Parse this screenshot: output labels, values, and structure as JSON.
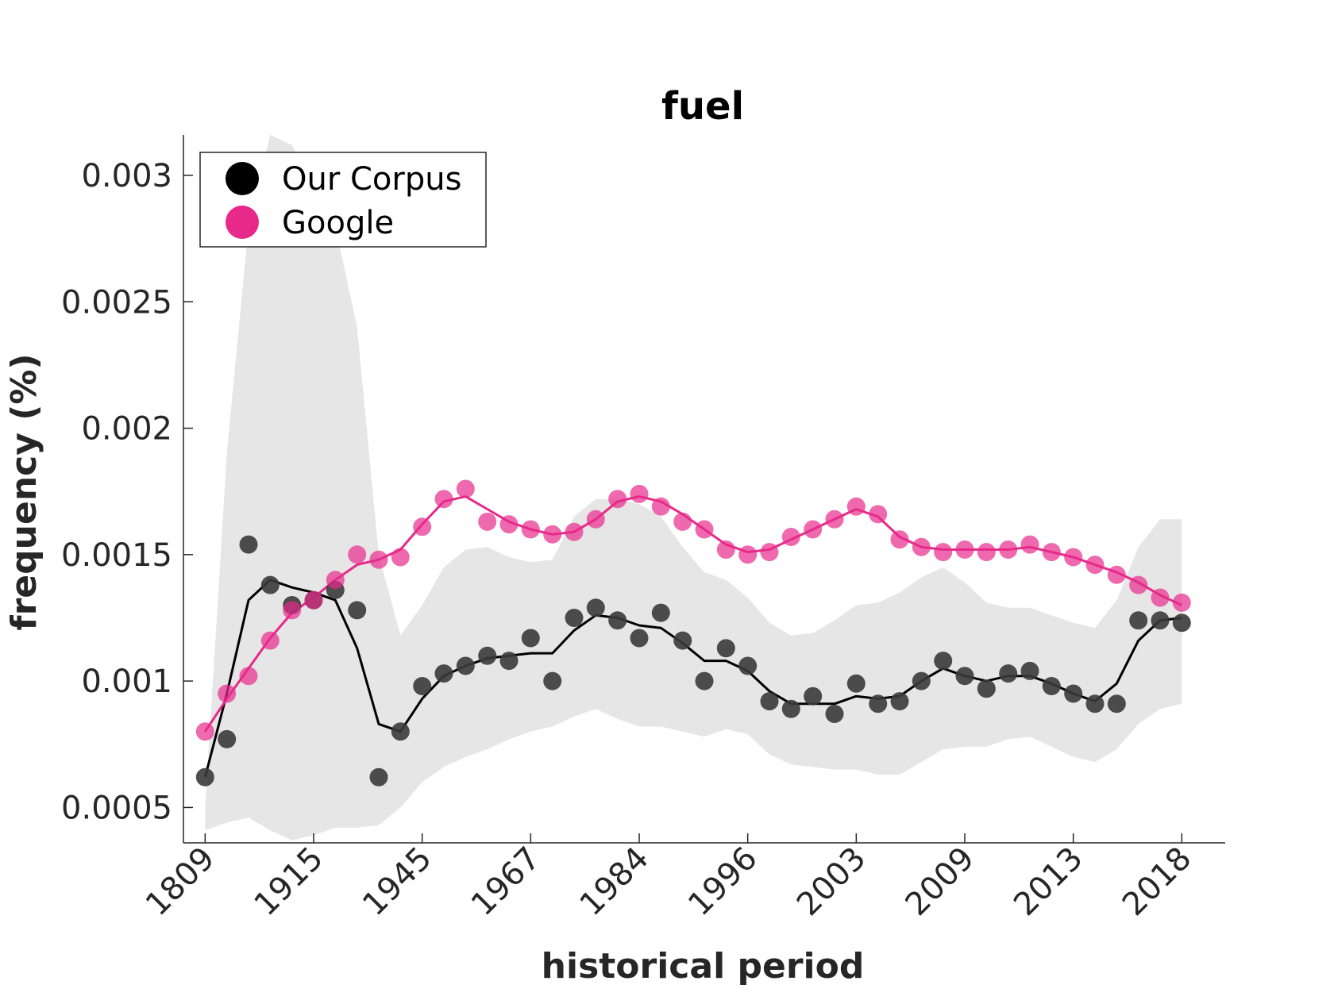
{
  "chart_data": {
    "type": "scatter",
    "title": "fuel",
    "xlabel": "historical period",
    "ylabel": "frequency (%)",
    "x_tick_labels": [
      "1809",
      "1915",
      "1945",
      "1967",
      "1984",
      "1996",
      "2003",
      "2009",
      "2013",
      "2018"
    ],
    "x_tick_positions": [
      1,
      6,
      11,
      16,
      21,
      26,
      31,
      36,
      41,
      46
    ],
    "y_ticks": [
      0.0005,
      0.001,
      0.0015,
      0.002,
      0.0025,
      0.003
    ],
    "y_tick_labels": [
      "0.0005",
      "0.001",
      "0.0015",
      "0.002",
      "0.0025",
      "0.003"
    ],
    "xlim": [
      0,
      48
    ],
    "ylim": [
      0.00036,
      0.00316
    ],
    "grid": false,
    "legend_position": "top-left",
    "colors": {
      "corpus": "#000000",
      "google": "#e7298a",
      "band": "#e6e6e6"
    },
    "series": [
      {
        "name": "Our Corpus",
        "points": [
          0.00062,
          0.00077,
          0.00154,
          0.00138,
          0.0013,
          0.00132,
          0.00136,
          0.00128,
          0.00062,
          0.0008,
          0.00098,
          0.00103,
          0.00106,
          0.0011,
          0.00108,
          0.00117,
          0.001,
          0.00125,
          0.00129,
          0.00124,
          0.00117,
          0.00127,
          0.00116,
          0.001,
          0.00113,
          0.00106,
          0.00092,
          0.00089,
          0.00094,
          0.00087,
          0.00099,
          0.00091,
          0.00092,
          0.001,
          0.00108,
          0.00102,
          0.00097,
          0.00103,
          0.00104,
          0.00098,
          0.00095,
          0.00091,
          0.00091,
          0.00124,
          0.00124,
          0.00123
        ],
        "smoothed": [
          0.00062,
          0.00095,
          0.00132,
          0.0014,
          0.00137,
          0.00135,
          0.00132,
          0.00113,
          0.00083,
          0.0008,
          0.00093,
          0.00102,
          0.00106,
          0.00109,
          0.0011,
          0.00111,
          0.00111,
          0.0012,
          0.00126,
          0.00125,
          0.00122,
          0.00121,
          0.00115,
          0.00108,
          0.00108,
          0.00104,
          0.00096,
          0.00091,
          0.00091,
          0.00091,
          0.00094,
          0.00093,
          0.00094,
          0.001,
          0.00105,
          0.00102,
          0.001,
          0.00102,
          0.00102,
          0.00099,
          0.00095,
          0.00092,
          0.00099,
          0.00116,
          0.00124,
          0.00125
        ]
      },
      {
        "name": "Google",
        "points": [
          0.0008,
          0.00095,
          0.00102,
          0.00116,
          0.00128,
          0.00132,
          0.0014,
          0.0015,
          0.00148,
          0.00149,
          0.00161,
          0.00172,
          0.00176,
          0.00163,
          0.00162,
          0.0016,
          0.00158,
          0.00159,
          0.00164,
          0.00172,
          0.00174,
          0.00169,
          0.00163,
          0.0016,
          0.00152,
          0.0015,
          0.00151,
          0.00157,
          0.0016,
          0.00164,
          0.00169,
          0.00166,
          0.00156,
          0.00153,
          0.00151,
          0.00152,
          0.00151,
          0.00152,
          0.00154,
          0.00151,
          0.00149,
          0.00146,
          0.00142,
          0.00138,
          0.00133,
          0.00131
        ],
        "smoothed": [
          0.0008,
          0.00093,
          0.00105,
          0.00117,
          0.00127,
          0.00133,
          0.0014,
          0.00146,
          0.00148,
          0.00152,
          0.00162,
          0.00171,
          0.00173,
          0.00168,
          0.00163,
          0.0016,
          0.00158,
          0.00159,
          0.00164,
          0.00171,
          0.00173,
          0.00171,
          0.00166,
          0.0016,
          0.00154,
          0.00151,
          0.00152,
          0.00156,
          0.0016,
          0.00164,
          0.00168,
          0.00165,
          0.00157,
          0.00153,
          0.00152,
          0.00152,
          0.00152,
          0.00152,
          0.00153,
          0.00151,
          0.00149,
          0.00146,
          0.00143,
          0.00139,
          0.00134,
          0.0013
        ]
      }
    ],
    "band": {
      "upper": [
        0.0005,
        0.0019,
        0.0028,
        0.00316,
        0.00312,
        0.00295,
        0.0028,
        0.0024,
        0.0015,
        0.00118,
        0.0013,
        0.00145,
        0.00152,
        0.00153,
        0.00149,
        0.00147,
        0.00148,
        0.00165,
        0.00172,
        0.00172,
        0.0017,
        0.00165,
        0.00153,
        0.00143,
        0.0014,
        0.00133,
        0.00123,
        0.00118,
        0.00119,
        0.00124,
        0.0013,
        0.00131,
        0.00135,
        0.00141,
        0.00145,
        0.00139,
        0.00131,
        0.00129,
        0.00129,
        0.00126,
        0.00123,
        0.00121,
        0.00132,
        0.00153,
        0.00164,
        0.00164
      ],
      "lower": [
        0.00041,
        0.00044,
        0.00046,
        0.00041,
        0.00037,
        0.00039,
        0.00042,
        0.00042,
        0.00043,
        0.0005,
        0.0006,
        0.00066,
        0.0007,
        0.00073,
        0.00077,
        0.0008,
        0.00082,
        0.00086,
        0.00089,
        0.00085,
        0.00082,
        0.00082,
        0.0008,
        0.00078,
        0.00081,
        0.00079,
        0.00071,
        0.00067,
        0.00066,
        0.00065,
        0.00065,
        0.00063,
        0.00063,
        0.00068,
        0.00073,
        0.00074,
        0.00074,
        0.00077,
        0.00078,
        0.00074,
        0.0007,
        0.00068,
        0.00073,
        0.00083,
        0.00089,
        0.00091
      ]
    }
  }
}
